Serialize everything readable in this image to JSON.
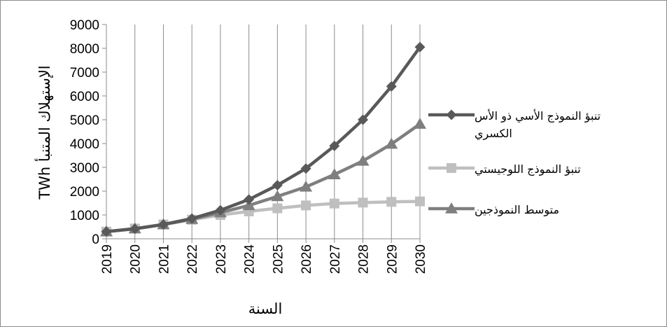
{
  "chart_data": {
    "type": "line",
    "ylabel": "الإستهلاك المتنبأ TWh",
    "xlabel": "السنة",
    "x": [
      "2019",
      "2020",
      "2021",
      "2022",
      "2023",
      "2024",
      "2025",
      "2026",
      "2027",
      "2028",
      "2029",
      "2030"
    ],
    "yticks": [
      "0",
      "1000",
      "2000",
      "3000",
      "4000",
      "5000",
      "6000",
      "7000",
      "8000",
      "9000"
    ],
    "ylim": [
      0,
      9000
    ],
    "grid": "horizontal-off, vertical-on",
    "legend_position": "right",
    "series": [
      {
        "name": "تنبؤ النموذج الأسي ذو الأس الكسري",
        "legend_lines": [
          "تنبؤ النموذج الأسي ذو الأس",
          "الكسري"
        ],
        "marker": "diamond",
        "color": "#595959",
        "values": [
          300,
          420,
          600,
          850,
          1200,
          1650,
          2250,
          2950,
          3900,
          5000,
          6400,
          8050
        ]
      },
      {
        "name": "تنبؤ النموذج اللوجيستي",
        "legend_lines": [
          "تنبؤ النموذج اللوجيستي"
        ],
        "marker": "square",
        "color": "#bfbfbf",
        "values": [
          300,
          430,
          600,
          800,
          1000,
          1150,
          1280,
          1400,
          1480,
          1520,
          1550,
          1570
        ]
      },
      {
        "name": "متوسط النموذجين",
        "legend_lines": [
          "متوسط النموذجين"
        ],
        "marker": "triangle",
        "color": "#7f7f7f",
        "values": [
          300,
          425,
          600,
          825,
          1100,
          1400,
          1780,
          2180,
          2700,
          3270,
          3980,
          4820
        ]
      }
    ]
  }
}
